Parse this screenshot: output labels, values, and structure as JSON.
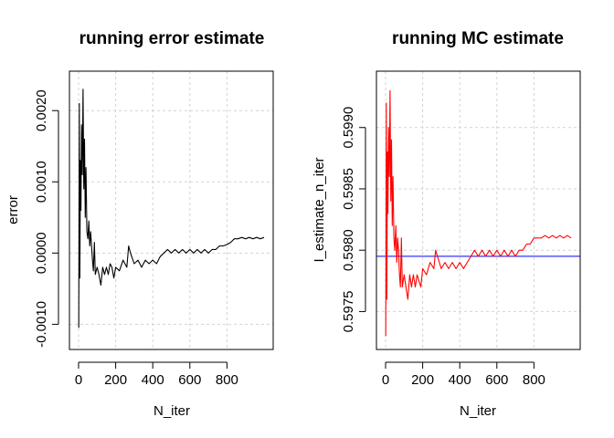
{
  "chart_data": [
    {
      "type": "line",
      "title": "running error estimate",
      "xlabel": "N_iter",
      "ylabel": "error",
      "xlim": [
        0,
        1000
      ],
      "ylim": [
        -0.0012,
        0.0024
      ],
      "xticks": [
        0,
        200,
        400,
        600,
        800
      ],
      "xtick_labels": [
        "0",
        "200",
        "400",
        "600",
        "800"
      ],
      "yticks": [
        -0.001,
        0.0,
        0.001,
        0.002
      ],
      "ytick_labels": [
        "-0.0010",
        "0.0000",
        "0.0010",
        "0.0020"
      ],
      "grid": true,
      "line_color": "#000000",
      "series": [
        {
          "x": [
            1,
            4,
            7,
            10,
            13,
            16,
            20,
            24,
            28,
            32,
            36,
            40,
            45,
            50,
            55,
            60,
            65,
            70,
            75,
            80,
            85,
            90,
            100,
            110,
            120,
            130,
            140,
            150,
            160,
            170,
            180,
            190,
            200,
            220,
            240,
            260,
            270,
            280,
            300,
            320,
            340,
            360,
            380,
            400,
            420,
            440,
            460,
            480,
            500,
            520,
            540,
            560,
            580,
            600,
            620,
            640,
            660,
            680,
            700,
            720,
            740,
            760,
            780,
            800,
            820,
            840,
            860,
            880,
            900,
            920,
            940,
            960,
            980,
            1000
          ],
          "y": [
            -0.00105,
            0.0021,
            -0.00035,
            0.0013,
            0.0006,
            0.0018,
            0.0011,
            0.0023,
            0.0009,
            0.0016,
            0.0005,
            0.0012,
            0.0003,
            0.0002,
            0.00045,
            0.0001,
            0.0003,
            0.0001,
            -0.0001,
            -0.00025,
            0.00015,
            -0.0003,
            -0.0002,
            -0.0003,
            -0.00045,
            -0.0002,
            -0.0003,
            -0.0002,
            -0.0003,
            -0.00015,
            -0.0002,
            -0.00035,
            -0.0002,
            -0.00025,
            -0.0001,
            -0.0002,
            0.0001,
            0.0,
            -0.00015,
            -0.0001,
            -0.0002,
            -0.0001,
            -0.00015,
            -0.0001,
            -0.00015,
            -5e-05,
            0.0,
            5e-05,
            0.0,
            5e-05,
            0.0,
            5e-05,
            0.0,
            5e-05,
            0.0,
            5e-05,
            0.0,
            5e-05,
            0.0,
            5e-05,
            5e-05,
            0.0001,
            0.0001,
            0.00012,
            0.00015,
            0.0002,
            0.0002,
            0.00022,
            0.0002,
            0.00022,
            0.0002,
            0.00022,
            0.0002,
            0.00022
          ]
        }
      ]
    },
    {
      "type": "line",
      "title": "running MC estimate",
      "xlabel": "N_iter",
      "ylabel": "I_estimate_n_iter",
      "xlim": [
        0,
        1000
      ],
      "ylim": [
        0.59728,
        0.59937
      ],
      "xticks": [
        0,
        200,
        400,
        600,
        800
      ],
      "xtick_labels": [
        "0",
        "200",
        "400",
        "600",
        "800"
      ],
      "yticks": [
        0.5975,
        0.598,
        0.5985,
        0.599
      ],
      "ytick_labels": [
        "0.5975",
        "0.5980",
        "0.5985",
        "0.5990"
      ],
      "grid": true,
      "line_color": "#ff0000",
      "hline": {
        "y": 0.59795,
        "color": "#0000ff"
      },
      "series": [
        {
          "x": [
            1,
            4,
            7,
            10,
            13,
            16,
            20,
            24,
            28,
            32,
            36,
            40,
            45,
            50,
            55,
            60,
            65,
            70,
            75,
            80,
            85,
            90,
            100,
            110,
            120,
            130,
            140,
            150,
            160,
            170,
            180,
            190,
            200,
            220,
            240,
            260,
            270,
            280,
            300,
            320,
            340,
            360,
            380,
            400,
            420,
            440,
            460,
            480,
            500,
            520,
            540,
            560,
            580,
            600,
            620,
            640,
            660,
            680,
            700,
            720,
            740,
            760,
            780,
            800,
            820,
            840,
            860,
            880,
            900,
            920,
            940,
            960,
            980,
            1000
          ],
          "y": [
            0.5973,
            0.5992,
            0.5976,
            0.5988,
            0.5983,
            0.599,
            0.5986,
            0.5993,
            0.5984,
            0.5989,
            0.5982,
            0.5986,
            0.5981,
            0.598,
            0.5982,
            0.5979,
            0.5981,
            0.598,
            0.5978,
            0.5977,
            0.5981,
            0.5977,
            0.5978,
            0.5977,
            0.5976,
            0.5978,
            0.5977,
            0.5978,
            0.5977,
            0.5978,
            0.59775,
            0.5977,
            0.59785,
            0.5978,
            0.5979,
            0.59785,
            0.598,
            0.59795,
            0.59785,
            0.5979,
            0.59785,
            0.5979,
            0.59785,
            0.5979,
            0.59785,
            0.5979,
            0.59795,
            0.598,
            0.59795,
            0.598,
            0.59795,
            0.598,
            0.59795,
            0.598,
            0.59795,
            0.598,
            0.59795,
            0.598,
            0.59795,
            0.598,
            0.598,
            0.59805,
            0.59805,
            0.5981,
            0.5981,
            0.5981,
            0.59812,
            0.5981,
            0.59812,
            0.5981,
            0.59812,
            0.5981,
            0.59812,
            0.5981
          ]
        }
      ]
    }
  ]
}
